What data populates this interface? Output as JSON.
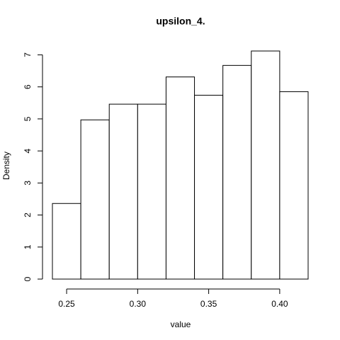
{
  "chart_data": {
    "type": "histogram",
    "title": "upsilon_4.",
    "xlabel": "value",
    "ylabel": "Density",
    "bins": [
      0.24,
      0.26,
      0.28,
      0.3,
      0.32,
      0.34,
      0.36,
      0.38,
      0.4,
      0.42
    ],
    "values": [
      2.36,
      4.97,
      5.46,
      5.46,
      6.31,
      5.74,
      6.67,
      7.12,
      5.85
    ],
    "color": "#ffffff",
    "xlim": [
      0.24,
      0.42
    ],
    "xticks": [
      0.25,
      {
        "value": 0.3,
        "label": "0.30"
      },
      0.35,
      {
        "value": 0.4,
        "label": "0.40"
      }
    ],
    "ylim": [
      0,
      7.12
    ],
    "yticks": [
      0,
      1,
      2,
      3,
      4,
      5,
      6,
      7
    ]
  }
}
